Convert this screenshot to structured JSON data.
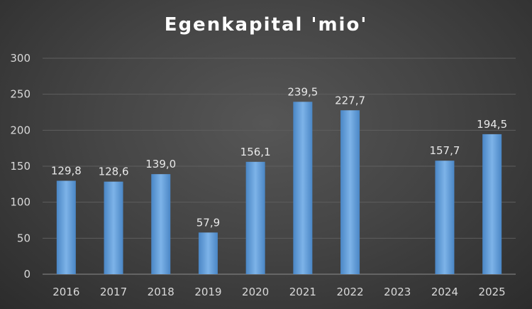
{
  "chart_data": {
    "type": "bar",
    "title": "Egenkapital 'mio'",
    "xlabel": "",
    "ylabel": "",
    "categories": [
      "2016",
      "2017",
      "2018",
      "2019",
      "2020",
      "2021",
      "2022",
      "2023",
      "2024",
      "2025"
    ],
    "values": [
      129.8,
      128.6,
      139.0,
      57.9,
      156.1,
      239.5,
      227.7,
      null,
      157.7,
      194.5
    ],
    "data_labels": [
      "129,8",
      "128,6",
      "139,0",
      "57,9",
      "156,1",
      "239,5",
      "227,7",
      "",
      "157,7",
      "194,5"
    ],
    "yticks": [
      "0",
      "50",
      "100",
      "150",
      "200",
      "250",
      "300"
    ],
    "ylim": [
      0,
      300
    ],
    "grid": true,
    "legend": "none",
    "bar_color": "#5b9bd5"
  }
}
